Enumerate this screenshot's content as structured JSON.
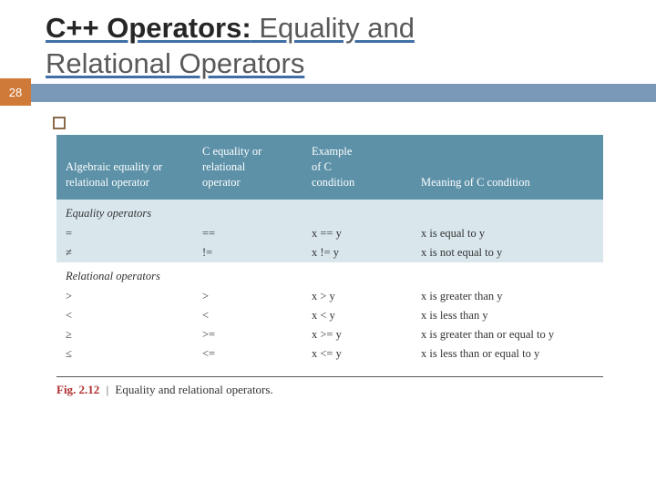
{
  "slide": {
    "number": "28",
    "title_strong": "C++ Operators:",
    "title_rest1": " Equality and",
    "title_rest2": "Relational Operators"
  },
  "table": {
    "headers": {
      "c1a": "Algebraic equality or",
      "c1b": "relational operator",
      "c2a": "C equality or",
      "c2b": "relational",
      "c2c": "operator",
      "c3a": "Example",
      "c3b": "of C",
      "c3c": "condition",
      "c4": "Meaning of C condition"
    },
    "section1": "Equality operators",
    "section2": "Relational operators",
    "rows_eq": [
      {
        "alg": "=",
        "cop": "==",
        "ex": "x == y",
        "mean": "x is equal to y"
      },
      {
        "alg": "≠",
        "cop": "!=",
        "ex": "x != y",
        "mean": "x is not equal to y"
      }
    ],
    "rows_rel": [
      {
        "alg": ">",
        "cop": ">",
        "ex": "x > y",
        "mean": "x is greater than y"
      },
      {
        "alg": "<",
        "cop": "<",
        "ex": "x < y",
        "mean": "x is less than y"
      },
      {
        "alg": "≥",
        "cop": ">=",
        "ex": "x >= y",
        "mean": "x is greater than or equal to y"
      },
      {
        "alg": "≤",
        "cop": "<=",
        "ex": "x <= y",
        "mean": "x is less than or equal to y"
      }
    ]
  },
  "caption": {
    "label": "Fig. 2.12",
    "sep": "|",
    "text": "Equality and relational operators."
  },
  "colors": {
    "header_bg": "#5c91a8",
    "band_bg": "#d9e7ed",
    "accent_bar": "#7a99b8",
    "slide_num_bg": "#d07a3a",
    "fig_label": "#b03030"
  }
}
